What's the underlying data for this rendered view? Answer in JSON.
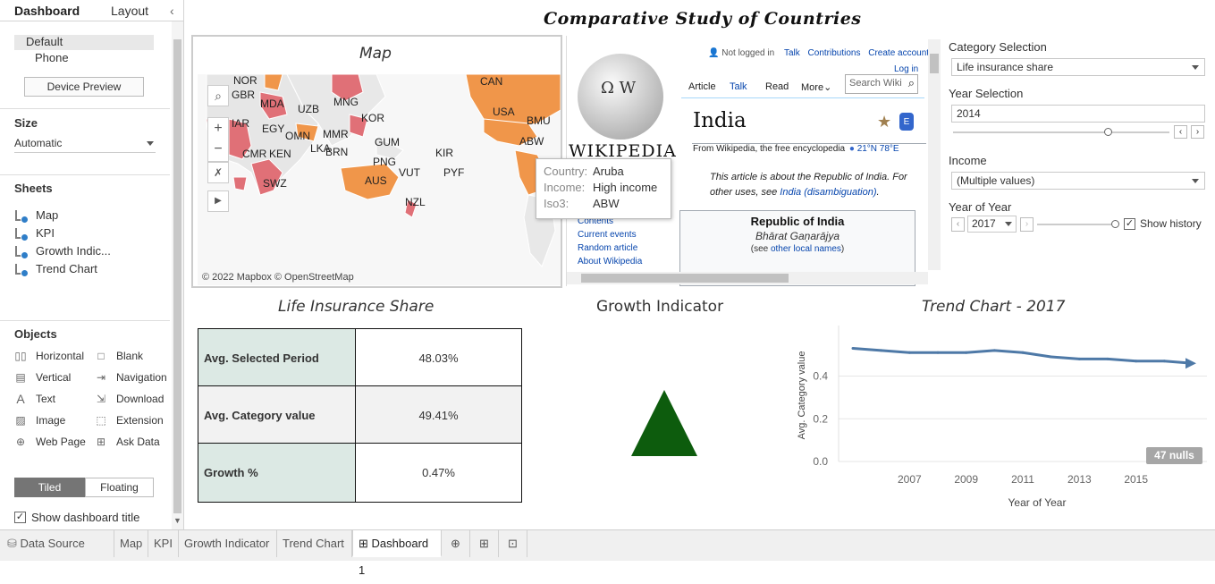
{
  "left_pane": {
    "tabs": [
      "Dashboard",
      "Layout"
    ],
    "device_options": [
      "Default",
      "Phone"
    ],
    "device_preview_label": "Device Preview",
    "size_title": "Size",
    "size_value": "Automatic",
    "sheets_title": "Sheets",
    "sheets": [
      "Map",
      "KPI",
      "Growth Indic...",
      "Trend Chart"
    ],
    "objects_title": "Objects",
    "objects": [
      {
        "label": "Horizontal",
        "icon": "horizontal-icon"
      },
      {
        "label": "Blank",
        "icon": "blank-icon"
      },
      {
        "label": "Vertical",
        "icon": "vertical-icon"
      },
      {
        "label": "Navigation",
        "icon": "navigation-icon"
      },
      {
        "label": "Text",
        "icon": "text-icon"
      },
      {
        "label": "Download",
        "icon": "download-icon"
      },
      {
        "label": "Image",
        "icon": "image-icon"
      },
      {
        "label": "Extension",
        "icon": "extension-icon"
      },
      {
        "label": "Web Page",
        "icon": "globe-icon"
      },
      {
        "label": "Ask Data",
        "icon": "ask-data-icon"
      }
    ],
    "layout_toggle": [
      "Tiled",
      "Floating"
    ],
    "show_title_label": "Show dashboard title"
  },
  "dashboard": {
    "title": "Comparative Study of Countries",
    "map": {
      "title": "Map",
      "attribution": "© 2022 Mapbox © OpenStreetMap",
      "labels": [
        "NOR",
        "GBR",
        "MDA",
        "UZB",
        "MNG",
        "CAN",
        "USA",
        "BMU",
        "IAR",
        "EGY",
        "OMN",
        "KOR",
        "MMR",
        "ABW",
        "BRN",
        "GUM",
        "CMR",
        "KEN",
        "LKA",
        "KIR",
        "PNG",
        "SWZ",
        "VUT",
        "PYF",
        "AUS",
        "NZL"
      ],
      "tooltip": {
        "rows": [
          {
            "key": "Country:",
            "value": "Aruba"
          },
          {
            "key": "Income:",
            "value": "High income"
          },
          {
            "key": "Iso3:",
            "value": "ABW"
          }
        ]
      }
    },
    "wiki": {
      "not_logged": "Not logged in",
      "talk_top": "Talk",
      "contributions": "Contributions",
      "create_account": "Create account",
      "login": "Log in",
      "tab_article": "Article",
      "tab_talk": "Talk",
      "tab_read": "Read",
      "tab_more": "More",
      "search_placeholder": "Search Wiki",
      "logo_text": "Wikipedia",
      "heading": "India",
      "from_line": "From Wikipedia, the free encyclopedia",
      "coords": "21°N 78°E",
      "about_line": "This article is about the Republic of India. For other uses, see",
      "about_link": "India (disambiguation)",
      "nav_links": [
        "Contents",
        "Current events",
        "Random article",
        "About Wikipedia"
      ],
      "infobox_title": "Republic of India",
      "infobox_native": "Bhārat Gaṇarājya",
      "infobox_see": "(see",
      "infobox_link": "other local names",
      "infobox_close": ")"
    },
    "controls": {
      "category_label": "Category Selection",
      "category_value": "Life insurance share",
      "year_label": "Year Selection",
      "year_value": "2014",
      "income_label": "Income",
      "income_value": "(Multiple values)",
      "yoy_label": "Year of Year",
      "yoy_value": "2017",
      "show_history": "Show history"
    },
    "kpi": {
      "title": "Life Insurance Share",
      "rows": [
        {
          "label": "Avg. Selected Period",
          "value": "48.03%"
        },
        {
          "label": "Avg. Category value",
          "value": "49.41%"
        },
        {
          "label": "Growth %",
          "value": "0.47%"
        }
      ]
    },
    "growth": {
      "title": "Growth Indicator",
      "direction": "up",
      "color": "#0d5c0d"
    },
    "trend": {
      "title": "Trend Chart - 2017",
      "nulls_badge": "47 nulls"
    }
  },
  "chart_data": {
    "type": "line",
    "title": "Trend Chart - 2017",
    "xlabel": "Year of Year",
    "ylabel": "Avg. Category value",
    "x": [
      2005,
      2006,
      2007,
      2008,
      2009,
      2010,
      2011,
      2012,
      2013,
      2014,
      2015,
      2016,
      2017
    ],
    "series": [
      {
        "values": [
          0.53,
          0.52,
          0.51,
          0.51,
          0.51,
          0.52,
          0.51,
          0.49,
          0.48,
          0.48,
          0.47,
          0.47,
          0.46
        ],
        "color": "#4e79a7"
      }
    ],
    "xticks": [
      "2007",
      "2009",
      "2011",
      "2013",
      "2015"
    ],
    "yticks": [
      "0.0",
      "0.2",
      "0.4"
    ],
    "xlim": [
      2005,
      2017
    ],
    "ylim": [
      0,
      0.62
    ],
    "grid": true
  },
  "bottom_tabs": [
    "Data Source",
    "Map",
    "KPI",
    "Growth Indicator",
    "Trend Chart",
    "Dashboard 1"
  ],
  "colors": {
    "accent": "#4e79a7",
    "kpi_label_bg": "#dce9e4",
    "map_orange": "#f0964a",
    "map_pink": "#e07077"
  }
}
